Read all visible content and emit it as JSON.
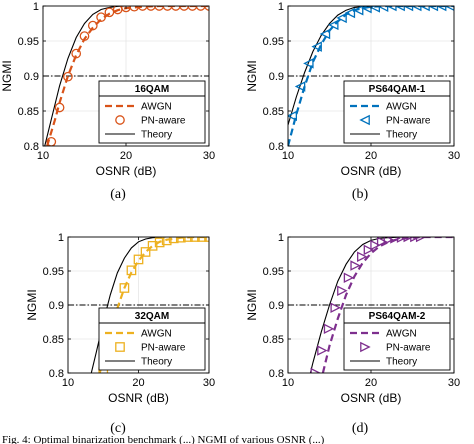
{
  "chart_data": [
    {
      "type": "line",
      "caption": "(a)",
      "xlabel": "OSNR (dB)",
      "ylabel": "NGMI",
      "xlim": [
        10,
        30
      ],
      "ylim": [
        0.8,
        1.0
      ],
      "xticks": [
        "10",
        "20",
        "30"
      ],
      "yticks": [
        "0.8",
        "0.85",
        "0.9",
        "0.95",
        "1"
      ],
      "grid": true,
      "threshold": 0.9,
      "legend_title": "16QAM",
      "legend_position": "bottom-right",
      "color": "#d95319",
      "marker": "circle",
      "series": [
        {
          "name": "AWGN",
          "style": "dashed",
          "x": [
            10.5,
            11.5,
            12,
            13,
            14,
            15,
            16,
            17,
            18,
            19,
            20,
            22,
            24,
            26,
            28,
            30
          ],
          "y": [
            0.8,
            0.84,
            0.862,
            0.9,
            0.93,
            0.953,
            0.969,
            0.981,
            0.989,
            0.994,
            0.997,
            0.999,
            1.0,
            1.0,
            1.0,
            1.0
          ]
        },
        {
          "name": "PN-aware",
          "style": "markers",
          "x": [
            11,
            12,
            13,
            14,
            15,
            16,
            17,
            18,
            19,
            20,
            21,
            22,
            23,
            24,
            25,
            26,
            27,
            28,
            29,
            30
          ],
          "y": [
            0.806,
            0.855,
            0.899,
            0.932,
            0.957,
            0.972,
            0.984,
            0.991,
            0.995,
            0.998,
            0.999,
            1.0,
            1.0,
            1.0,
            1.0,
            1.0,
            1.0,
            1.0,
            1.0,
            1.0
          ]
        },
        {
          "name": "Theory",
          "style": "solid",
          "x": [
            10,
            11,
            12,
            13,
            14,
            15,
            16,
            17,
            18,
            19,
            20,
            22,
            25,
            30
          ],
          "y": [
            0.79,
            0.838,
            0.886,
            0.925,
            0.955,
            0.975,
            0.988,
            0.995,
            0.998,
            0.9995,
            1.0,
            1.0,
            1.0,
            1.0
          ]
        }
      ]
    },
    {
      "type": "line",
      "caption": "(b)",
      "xlabel": "OSNR (dB)",
      "ylabel": "NGMI",
      "xlim": [
        10,
        30
      ],
      "ylim": [
        0.8,
        1.0
      ],
      "xticks": [
        "10",
        "20",
        "30"
      ],
      "yticks": [
        "0.8",
        "0.85",
        "0.9",
        "0.95",
        "1"
      ],
      "grid": true,
      "threshold": 0.9,
      "legend_title": "PS64QAM-1",
      "legend_position": "bottom-right",
      "color": "#0072bd",
      "marker": "triangle-left",
      "series": [
        {
          "name": "AWGN",
          "style": "dashed",
          "x": [
            10,
            11,
            12,
            13,
            14,
            15,
            16,
            17,
            18,
            19,
            20,
            22,
            25,
            30
          ],
          "y": [
            0.8,
            0.845,
            0.885,
            0.92,
            0.945,
            0.965,
            0.978,
            0.988,
            0.994,
            0.997,
            0.999,
            1.0,
            1.0,
            1.0
          ]
        },
        {
          "name": "PN-aware",
          "style": "markers",
          "x": [
            10.5,
            11.5,
            12.5,
            13.5,
            14.5,
            15.5,
            16.5,
            17.5,
            18.5,
            19.5,
            20.5,
            21.5,
            22.5,
            23.5,
            24.5,
            25.5,
            26.5,
            27.5,
            28.5,
            29.5
          ],
          "y": [
            0.843,
            0.885,
            0.918,
            0.942,
            0.96,
            0.973,
            0.983,
            0.99,
            0.994,
            0.997,
            0.998,
            0.999,
            1.0,
            1.0,
            1.0,
            1.0,
            1.0,
            1.0,
            1.0,
            1.0
          ]
        },
        {
          "name": "Theory",
          "style": "solid",
          "x": [
            10,
            11,
            12,
            13,
            14,
            15,
            16,
            17,
            18,
            20,
            22,
            25,
            30
          ],
          "y": [
            0.83,
            0.87,
            0.905,
            0.935,
            0.958,
            0.975,
            0.987,
            0.994,
            0.998,
            1.0,
            1.0,
            1.0,
            1.0
          ]
        }
      ]
    },
    {
      "type": "line",
      "caption": "(c)",
      "xlabel": "OSNR (dB)",
      "ylabel": "NGMI",
      "xlim": [
        10,
        30
      ],
      "ylim": [
        0.8,
        1.0
      ],
      "xticks": [
        "10",
        "20",
        "30"
      ],
      "yticks": [
        "0.8",
        "0.85",
        "0.9",
        "0.95",
        "1"
      ],
      "grid": true,
      "threshold": 0.9,
      "legend_title": "32QAM",
      "legend_position": "bottom-right",
      "color": "#edb120",
      "marker": "square",
      "series": [
        {
          "name": "AWGN",
          "style": "dashed",
          "x": [
            14.5,
            15,
            16,
            17,
            18,
            19,
            20,
            21,
            22,
            23,
            24,
            26,
            28,
            30
          ],
          "y": [
            0.8,
            0.82,
            0.86,
            0.895,
            0.925,
            0.948,
            0.965,
            0.978,
            0.987,
            0.993,
            0.996,
            0.999,
            1.0,
            1.0
          ]
        },
        {
          "name": "PN-aware",
          "style": "markers",
          "x": [
            15,
            16,
            17,
            18,
            19,
            20,
            21,
            22,
            23,
            24,
            25,
            26,
            27,
            28,
            29,
            30
          ],
          "y": [
            0.801,
            0.845,
            0.888,
            0.925,
            0.951,
            0.967,
            0.978,
            0.987,
            0.992,
            0.995,
            0.998,
            0.999,
            1.0,
            1.0,
            1.0,
            1.0
          ]
        },
        {
          "name": "Theory",
          "style": "solid",
          "x": [
            13.3,
            14,
            15,
            16,
            17,
            18,
            19,
            20,
            21,
            22,
            24,
            26,
            30
          ],
          "y": [
            0.8,
            0.83,
            0.875,
            0.915,
            0.947,
            0.969,
            0.984,
            0.993,
            0.997,
            0.999,
            1.0,
            1.0,
            1.0
          ]
        }
      ]
    },
    {
      "type": "line",
      "caption": "(d)",
      "xlabel": "OSNR (dB)",
      "ylabel": "NGMI",
      "xlim": [
        10,
        30
      ],
      "ylim": [
        0.8,
        1.0
      ],
      "xticks": [
        "10",
        "20",
        "30"
      ],
      "yticks": [
        "0.8",
        "0.85",
        "0.9",
        "0.95",
        "1"
      ],
      "grid": true,
      "threshold": 0.9,
      "legend_title": "PS64QAM-2",
      "legend_position": "bottom-right",
      "color": "#7e2f8e",
      "marker": "triangle-right",
      "series": [
        {
          "name": "AWGN",
          "style": "dashed",
          "x": [
            14.2,
            15,
            16,
            17,
            18,
            19,
            20,
            21,
            22,
            23,
            24,
            26,
            28,
            30
          ],
          "y": [
            0.8,
            0.84,
            0.88,
            0.915,
            0.942,
            0.962,
            0.976,
            0.986,
            0.992,
            0.996,
            0.998,
            1.0,
            1.0,
            1.0
          ]
        },
        {
          "name": "PN-aware",
          "style": "markers",
          "x": [
            13.3,
            14.1,
            14.9,
            15.7,
            16.5,
            17.3,
            18.1,
            18.9,
            19.7,
            20.5,
            21.3,
            22.1,
            22.9,
            23.7,
            24.5,
            25.3,
            26
          ],
          "y": [
            0.8,
            0.833,
            0.865,
            0.896,
            0.921,
            0.94,
            0.958,
            0.971,
            0.981,
            0.988,
            0.993,
            0.996,
            0.998,
            0.999,
            1.0,
            1.0,
            1.0
          ]
        },
        {
          "name": "Theory",
          "style": "solid",
          "x": [
            12.7,
            13,
            14,
            15,
            16,
            17,
            18,
            19,
            20,
            21,
            22,
            24,
            26,
            30
          ],
          "y": [
            0.8,
            0.815,
            0.86,
            0.9,
            0.935,
            0.96,
            0.978,
            0.989,
            0.995,
            0.998,
            0.999,
            1.0,
            1.0,
            1.0
          ]
        }
      ]
    }
  ],
  "footer_text": "Fig. 4: Optimal binarization benchmark (...) NGMI of various OSNR (...)"
}
